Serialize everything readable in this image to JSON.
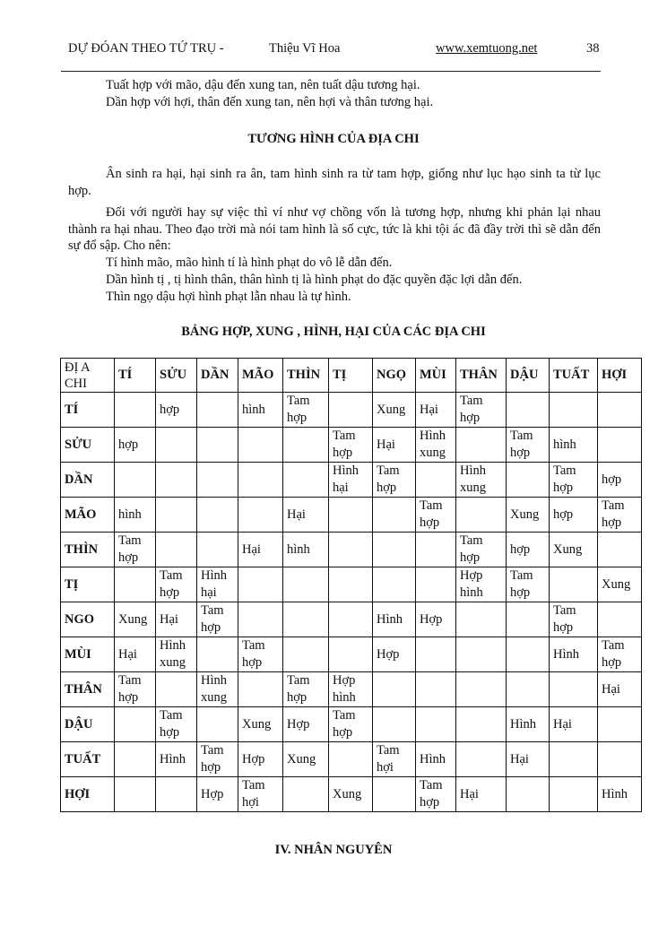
{
  "header": {
    "book_title": "DỰ ĐÓAN THEO TỨ TRỤ -",
    "author": "Thiệu Vĩ  Hoa",
    "website": "www.xemtuong.net",
    "page_number": "38"
  },
  "intro_lines": [
    "Tuất  hợp với mão, dậu đến xung tan, nên tuất dậu  tương hại.",
    "Dần  hợp với hợi, thân đến xung tan, nên hợi và thân tương hại."
  ],
  "section_title": "TƯƠNG HÌNH CỦA ĐỊA CHI",
  "paragraphs": [
    "Ân sinh ra hại, hại sinh ra ân, tam hình sinh ra từ tam hợp, giống như lục hạo sinh ta từ lục hợp.",
    "Đối với người hay sự việc thì ví như vợ chồng vốn là tương hợp, nhưng khi phản lại nhau thành ra hại nhau. Theo đạo trời mà nói tam hình là số cực, tức là khi tội ác đã đầy trời thì sẽ dẫn đến sự đổ sập. Cho nên:"
  ],
  "list_lines": [
    "Tí hình mão, mão hình tí là hình phạt do vô lễ dẫn đến.",
    "Dần hình tị , tị hình thân, thân hình tị là hình phạt do đặc quyền đặc lợi dẫn đến.",
    "Thìn ngọ dậu hợi hình phạt lẫn nhau là tự hình."
  ],
  "table_title": "BẢNG HỢP, XUNG , HÌNH, HẠI CỦA CÁC ĐỊA CHI",
  "table": {
    "corner": "ĐỊ A\nCHI",
    "columns": [
      "TÍ",
      "SỬU",
      "DẦN",
      "MÃO",
      "THÌN",
      "TỊ",
      "NGỌ",
      "MÙI",
      "THÂN",
      "DẬU",
      "TUẤT",
      "HỢI"
    ],
    "rows": [
      {
        "label": "TÍ",
        "cells": [
          "",
          "hợp",
          "",
          "hình",
          "Tam\nhợp",
          "",
          "Xung",
          "Hại",
          "Tam\nhợp",
          "",
          "",
          ""
        ]
      },
      {
        "label": "SỬU",
        "cells": [
          "hợp",
          "",
          "",
          "",
          "",
          "Tam\nhợp",
          "Hại",
          "Hình\nxung",
          "",
          "Tam\nhợp",
          "hình",
          ""
        ]
      },
      {
        "label": "DẦN",
        "cells": [
          "",
          "",
          "",
          "",
          "",
          "Hình\nhại",
          "Tam\nhợp",
          "",
          "Hình\nxung",
          "",
          "Tam\nhợp",
          "hợp"
        ]
      },
      {
        "label": "MÃO",
        "cells": [
          "hình",
          "",
          "",
          "",
          "Hại",
          "",
          "",
          "Tam\nhợp",
          "",
          "Xung",
          "hợp",
          "Tam\nhợp"
        ]
      },
      {
        "label": "THÌN",
        "cells": [
          "Tam\nhợp",
          "",
          "",
          "Hại",
          "hình",
          "",
          "",
          "",
          "Tam\nhợp",
          "hợp",
          "Xung",
          ""
        ]
      },
      {
        "label": "TỊ",
        "cells": [
          "",
          "Tam\nhợp",
          "Hình\nhại",
          "",
          "",
          "",
          "",
          "",
          "Hợp\nhình",
          "Tam\nhợp",
          "",
          "Xung"
        ]
      },
      {
        "label": "NGO",
        "cells": [
          "Xung",
          "Hại",
          "Tam\nhợp",
          "",
          "",
          "",
          "Hình",
          "Hợp",
          "",
          "",
          "Tam\nhợp",
          ""
        ]
      },
      {
        "label": "MÙI",
        "cells": [
          "Hại",
          "Hình\nxung",
          "",
          "Tam\nhợp",
          "",
          "",
          "Hợp",
          "",
          "",
          "",
          "Hình",
          "Tam\nhợp"
        ]
      },
      {
        "label": "THÂN",
        "cells": [
          "Tam\nhợp",
          "",
          "Hình\nxung",
          "",
          "Tam\nhợp",
          "Hợp\nhình",
          "",
          "",
          "",
          "",
          "",
          "Hại"
        ]
      },
      {
        "label": "DẬU",
        "cells": [
          "",
          "Tam\nhợp",
          "",
          "Xung",
          "Hợp",
          "Tam\nhợp",
          "",
          "",
          "",
          "Hình",
          "Hại",
          ""
        ]
      },
      {
        "label": "TUẤT",
        "cells": [
          "",
          "Hình",
          "Tam\nhợp",
          "Hợp",
          "Xung",
          "",
          "Tam\nhợi",
          "Hình",
          "",
          "Hại",
          "",
          ""
        ]
      },
      {
        "label": "HỢI",
        "cells": [
          "",
          "",
          "Hợp",
          "Tam\nhợi",
          "",
          "Xung",
          "",
          "Tam\nhợp",
          "Hại",
          "",
          "",
          "Hình"
        ]
      }
    ]
  },
  "next_section_title": "IV. NHÂN NGUYÊN"
}
